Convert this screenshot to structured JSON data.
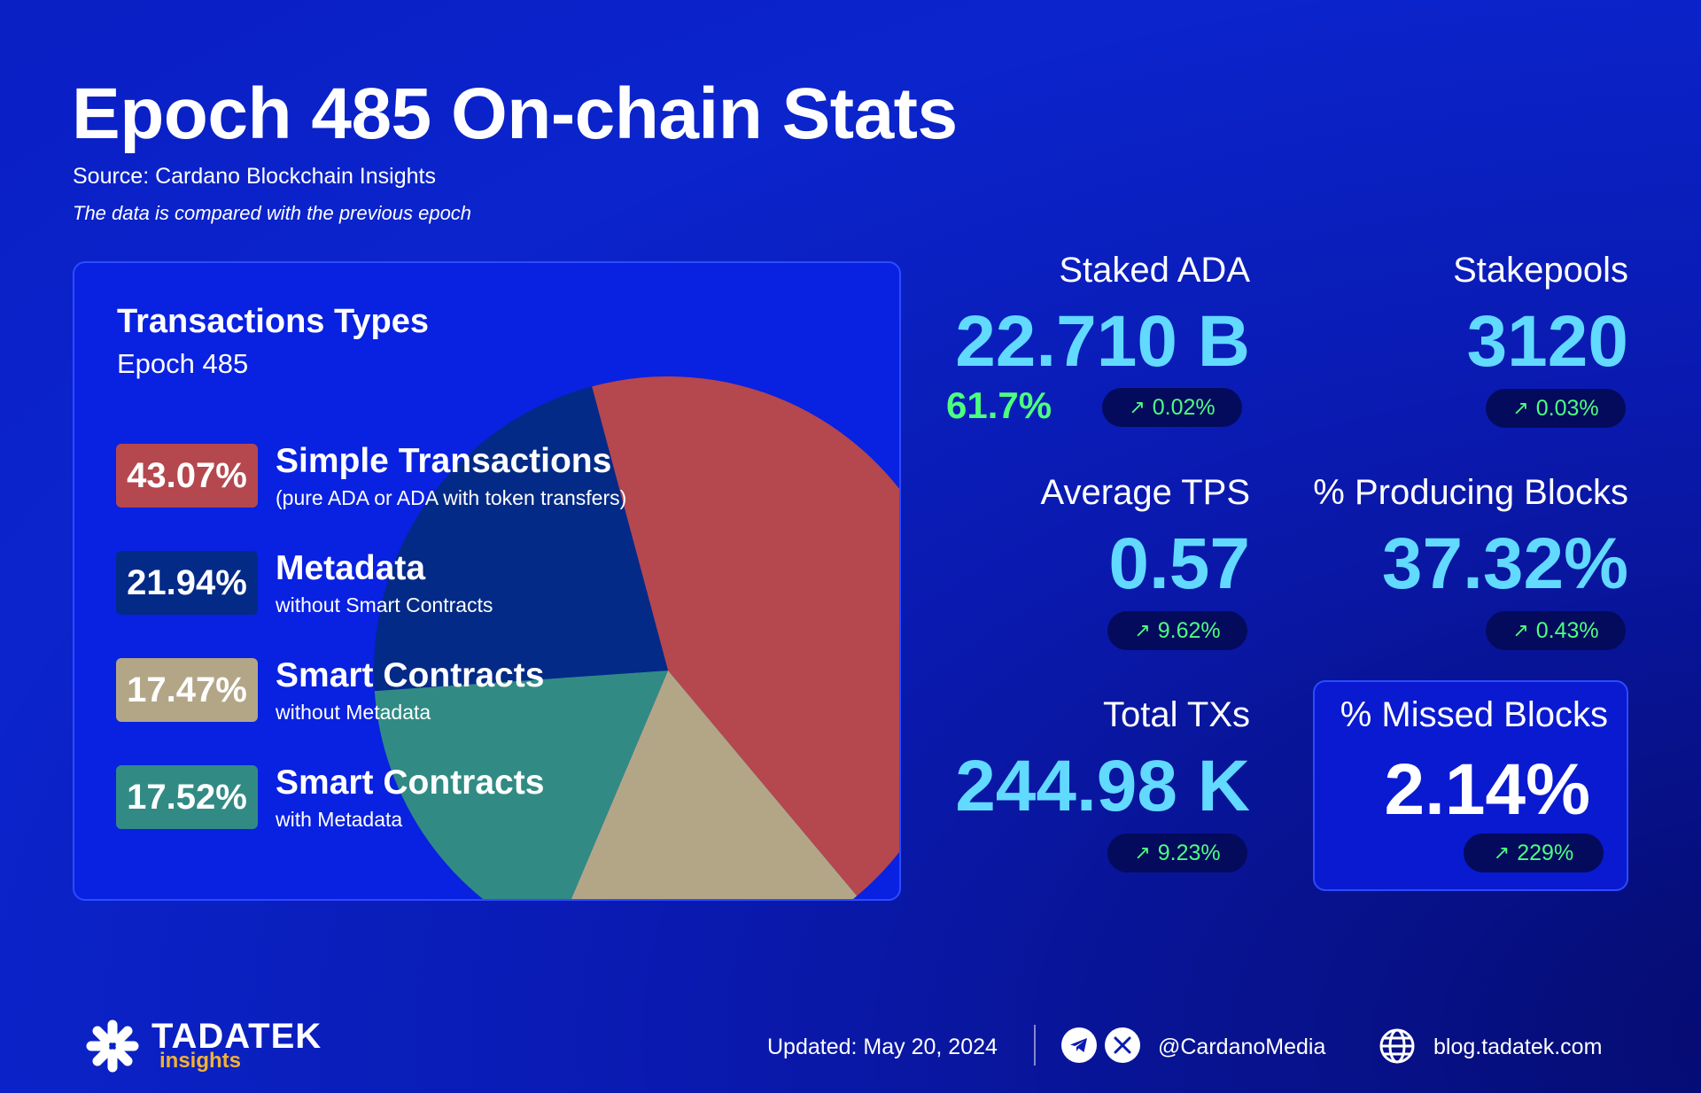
{
  "header": {
    "title": "Epoch 485 On-chain Stats",
    "source": "Source: Cardano Blockchain Insights",
    "comparison_note": "The data is compared with the previous epoch"
  },
  "chart_data": {
    "type": "pie",
    "title": "Transactions Types",
    "subtitle": "Epoch 485",
    "slices": [
      {
        "label": "43.07%",
        "name": "Simple Transactions",
        "description": "(pure ADA or ADA with token transfers)",
        "value": 43.07,
        "color": "#b5474e"
      },
      {
        "label": "21.94%",
        "name": "Metadata",
        "description": "without Smart Contracts",
        "value": 21.94,
        "color": "#032a86"
      },
      {
        "label": "17.47%",
        "name": "Smart Contracts",
        "description": "without Metadata",
        "value": 17.47,
        "color": "#b3a687"
      },
      {
        "label": "17.52%",
        "name": "Smart Contracts",
        "description": "with Metadata",
        "value": 17.52,
        "color": "#318b84"
      }
    ],
    "draw_order": [
      0,
      2,
      3,
      1
    ]
  },
  "stats": {
    "staked_ada": {
      "label": "Staked ADA",
      "value": "22.710 B",
      "share": "61.7%",
      "change": "0.02%"
    },
    "stakepools": {
      "label": "Stakepools",
      "value": "3120",
      "change": "0.03%"
    },
    "average_tps": {
      "label": "Average TPS",
      "value": "0.57",
      "change": "9.62%"
    },
    "producing_blocks": {
      "label": "% Producing Blocks",
      "value": "37.32%",
      "change": "0.43%"
    },
    "total_txs": {
      "label": "Total TXs",
      "value": "244.98 K",
      "change": "9.23%"
    },
    "missed_blocks": {
      "label": "% Missed Blocks",
      "value": "2.14%",
      "change": "229%"
    }
  },
  "change_icon": "arrow-up-right-icon",
  "colors": {
    "value_cyan": "#62d9ff",
    "change_green": "#4dff7f",
    "brand_orange": "#f2b233"
  },
  "footer": {
    "brand_name": "TADATEK",
    "brand_sub": "insights",
    "updated": "Updated: May 20, 2024",
    "social_handle": "@CardanoMedia",
    "website": "blog.tadatek.com"
  }
}
